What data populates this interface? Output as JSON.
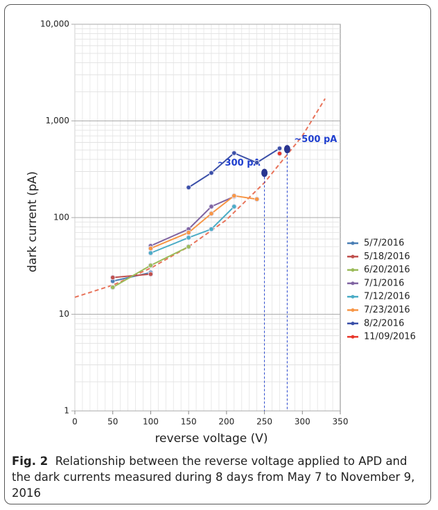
{
  "chart_data": {
    "type": "line",
    "x_label": "reverse voltage (V)",
    "y_label": "dark current (pA)",
    "x": [
      50,
      100,
      150,
      180,
      210,
      240,
      270
    ],
    "series": [
      {
        "name": "5/7/2016",
        "color": "#4a7fb5",
        "values": [
          22,
          27,
          null,
          null,
          null,
          null,
          null
        ]
      },
      {
        "name": "5/18/2016",
        "color": "#c0504d",
        "values": [
          24,
          26,
          null,
          null,
          null,
          null,
          null
        ]
      },
      {
        "name": "6/20/2016",
        "color": "#9bbb59",
        "values": [
          19,
          32,
          50,
          null,
          null,
          null,
          null
        ]
      },
      {
        "name": "7/1/2016",
        "color": "#8064a2",
        "values": [
          null,
          51,
          76,
          130,
          165,
          null,
          null
        ]
      },
      {
        "name": "7/12/2016",
        "color": "#4bacc6",
        "values": [
          null,
          43,
          62,
          76,
          130,
          null,
          null
        ]
      },
      {
        "name": "7/23/2016",
        "color": "#f79646",
        "values": [
          null,
          48,
          70,
          110,
          168,
          155,
          null
        ]
      },
      {
        "name": "8/2/2016",
        "color": "#3a4fa8",
        "values": [
          null,
          null,
          205,
          290,
          465,
          370,
          520
        ]
      },
      {
        "name": "11/09/2016",
        "color": "#e8362a",
        "values": [
          null,
          null,
          null,
          null,
          null,
          null,
          460
        ]
      }
    ],
    "fit": {
      "color": "#e8735a",
      "x": [
        0,
        50,
        100,
        150,
        200,
        250,
        300,
        330
      ],
      "values": [
        15,
        20,
        30,
        50,
        95,
        230,
        700,
        1700
      ]
    },
    "annotations": [
      {
        "text": "~300 pA",
        "x": 250,
        "y": 290,
        "color": "#1f3fcf"
      },
      {
        "text": "~500 pA",
        "x": 280,
        "y": 510,
        "color": "#1f3fcf"
      }
    ],
    "xlim": [
      0,
      350
    ],
    "xticks": [
      0,
      50,
      100,
      150,
      200,
      250,
      300,
      350
    ],
    "ylim": [
      1,
      10000
    ],
    "log_y": true,
    "yticks": [
      1,
      10,
      100,
      {
        "value": 1000,
        "label": "1,000"
      },
      {
        "value": 10000,
        "label": "10,000"
      }
    ],
    "grid": true,
    "legend": "right"
  },
  "caption": {
    "label": "Fig. 2",
    "text": "Relationship between the reverse voltage applied to APD and the dark currents measured during 8 days from May 7 to November 9, 2016"
  }
}
